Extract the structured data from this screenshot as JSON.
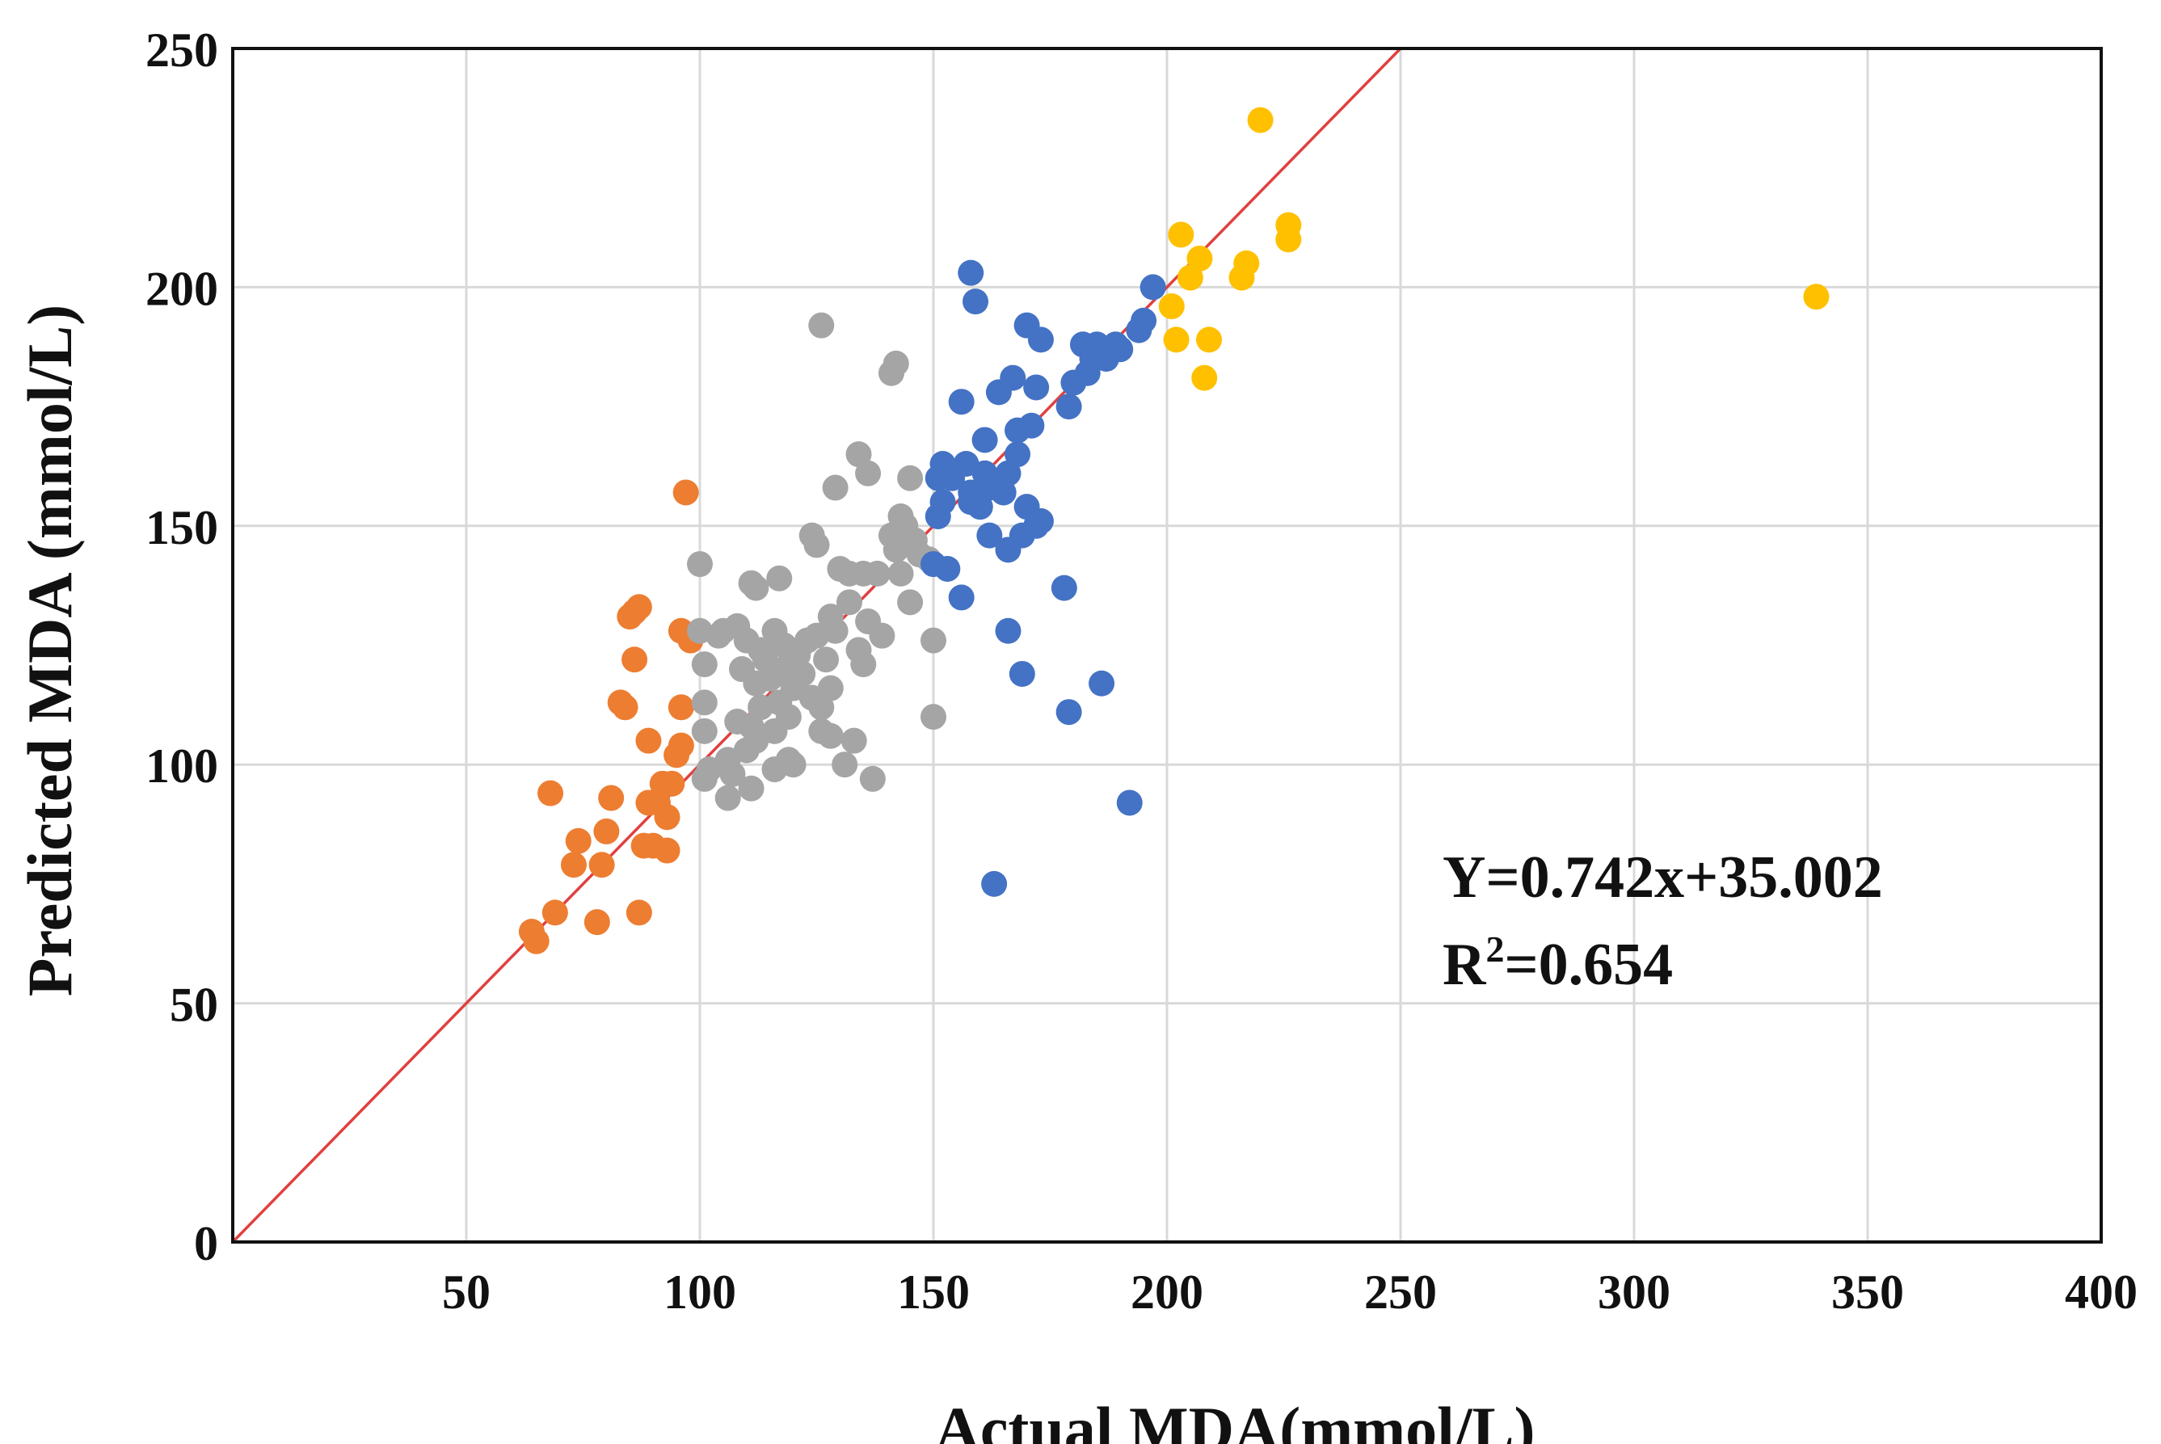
{
  "chart_data": {
    "type": "scatter",
    "title": "",
    "xlabel": "Actual MDA(mmol/L)",
    "ylabel": "Predicted MDA (mmol/L)",
    "xlim": [
      0,
      400
    ],
    "ylim": [
      0,
      250
    ],
    "xticks": [
      50,
      100,
      150,
      200,
      250,
      300,
      350,
      400
    ],
    "yticks": [
      0,
      50,
      100,
      150,
      200,
      250
    ],
    "grid": true,
    "legend": "none",
    "annotation": {
      "equation": "Y=0.742x+35.002",
      "r2_prefix": "R",
      "r2_sup": "2",
      "r2_value": "=0.654"
    },
    "reference_line": {
      "name": "y=x",
      "color": "#E0403F",
      "from": [
        0,
        0
      ],
      "to": [
        250,
        250
      ]
    },
    "series": [
      {
        "name": "orange",
        "color": "#ED7D31",
        "points": [
          [
            64,
            65
          ],
          [
            65,
            63
          ],
          [
            68,
            94
          ],
          [
            69,
            69
          ],
          [
            73,
            79
          ],
          [
            74,
            84
          ],
          [
            78,
            67
          ],
          [
            79,
            79
          ],
          [
            80,
            86
          ],
          [
            81,
            93
          ],
          [
            83,
            113
          ],
          [
            84,
            112
          ],
          [
            85,
            131
          ],
          [
            86,
            122
          ],
          [
            86,
            132
          ],
          [
            87,
            133
          ],
          [
            87,
            69
          ],
          [
            88,
            83
          ],
          [
            89,
            92
          ],
          [
            89,
            105
          ],
          [
            90,
            83
          ],
          [
            91,
            92
          ],
          [
            92,
            96
          ],
          [
            93,
            89
          ],
          [
            93,
            82
          ],
          [
            94,
            96
          ],
          [
            95,
            102
          ],
          [
            96,
            104
          ],
          [
            96,
            112
          ],
          [
            96,
            128
          ],
          [
            97,
            157
          ],
          [
            98,
            126
          ]
        ]
      },
      {
        "name": "gray",
        "color": "#A5A5A5",
        "points": [
          [
            100,
            142
          ],
          [
            100,
            128
          ],
          [
            101,
            121
          ],
          [
            101,
            113
          ],
          [
            101,
            107
          ],
          [
            101,
            97
          ],
          [
            102,
            99
          ],
          [
            104,
            127
          ],
          [
            105,
            128
          ],
          [
            106,
            101
          ],
          [
            106,
            93
          ],
          [
            107,
            98
          ],
          [
            108,
            129
          ],
          [
            108,
            109
          ],
          [
            109,
            120
          ],
          [
            110,
            126
          ],
          [
            110,
            103
          ],
          [
            111,
            138
          ],
          [
            111,
            108
          ],
          [
            111,
            95
          ],
          [
            112,
            137
          ],
          [
            112,
            117
          ],
          [
            112,
            105
          ],
          [
            113,
            124
          ],
          [
            113,
            112
          ],
          [
            114,
            122
          ],
          [
            115,
            118
          ],
          [
            116,
            128
          ],
          [
            116,
            107
          ],
          [
            116,
            99
          ],
          [
            117,
            139
          ],
          [
            117,
            113
          ],
          [
            118,
            125
          ],
          [
            118,
            120
          ],
          [
            119,
            110
          ],
          [
            119,
            101
          ],
          [
            120,
            116
          ],
          [
            120,
            100
          ],
          [
            121,
            123
          ],
          [
            122,
            119
          ],
          [
            123,
            126
          ],
          [
            124,
            148
          ],
          [
            124,
            114
          ],
          [
            125,
            146
          ],
          [
            125,
            127
          ],
          [
            126,
            192
          ],
          [
            126,
            112
          ],
          [
            126,
            107
          ],
          [
            127,
            122
          ],
          [
            128,
            131
          ],
          [
            128,
            116
          ],
          [
            128,
            106
          ],
          [
            129,
            158
          ],
          [
            129,
            128
          ],
          [
            130,
            141
          ],
          [
            131,
            100
          ],
          [
            132,
            140
          ],
          [
            132,
            134
          ],
          [
            133,
            105
          ],
          [
            134,
            165
          ],
          [
            134,
            124
          ],
          [
            135,
            140
          ],
          [
            135,
            121
          ],
          [
            136,
            161
          ],
          [
            136,
            130
          ],
          [
            137,
            97
          ],
          [
            138,
            140
          ],
          [
            139,
            127
          ],
          [
            141,
            182
          ],
          [
            141,
            148
          ],
          [
            142,
            184
          ],
          [
            142,
            145
          ],
          [
            143,
            152
          ],
          [
            143,
            140
          ],
          [
            144,
            150
          ],
          [
            145,
            160
          ],
          [
            145,
            134
          ],
          [
            146,
            147
          ],
          [
            147,
            144
          ],
          [
            149,
            143
          ],
          [
            150,
            126
          ],
          [
            150,
            110
          ]
        ]
      },
      {
        "name": "blue",
        "color": "#4472C4",
        "points": [
          [
            150,
            142
          ],
          [
            151,
            152
          ],
          [
            151,
            160
          ],
          [
            152,
            155
          ],
          [
            152,
            163
          ],
          [
            153,
            141
          ],
          [
            154,
            160
          ],
          [
            156,
            176
          ],
          [
            156,
            135
          ],
          [
            157,
            163
          ],
          [
            158,
            155
          ],
          [
            158,
            157
          ],
          [
            158,
            203
          ],
          [
            159,
            197
          ],
          [
            160,
            154
          ],
          [
            161,
            168
          ],
          [
            161,
            161
          ],
          [
            162,
            158
          ],
          [
            162,
            148
          ],
          [
            163,
            75
          ],
          [
            164,
            178
          ],
          [
            165,
            157
          ],
          [
            166,
            161
          ],
          [
            166,
            145
          ],
          [
            166,
            128
          ],
          [
            167,
            181
          ],
          [
            168,
            170
          ],
          [
            168,
            165
          ],
          [
            169,
            119
          ],
          [
            169,
            148
          ],
          [
            170,
            192
          ],
          [
            170,
            154
          ],
          [
            171,
            171
          ],
          [
            172,
            179
          ],
          [
            172,
            150
          ],
          [
            173,
            189
          ],
          [
            173,
            151
          ],
          [
            178,
            137
          ],
          [
            179,
            111
          ],
          [
            179,
            175
          ],
          [
            180,
            180
          ],
          [
            182,
            188
          ],
          [
            183,
            182
          ],
          [
            184,
            185
          ],
          [
            185,
            188
          ],
          [
            186,
            117
          ],
          [
            187,
            185
          ],
          [
            189,
            188
          ],
          [
            190,
            187
          ],
          [
            192,
            92
          ],
          [
            194,
            191
          ],
          [
            195,
            193
          ],
          [
            197,
            200
          ]
        ]
      },
      {
        "name": "yellow",
        "color": "#FFC000",
        "points": [
          [
            201,
            196
          ],
          [
            202,
            189
          ],
          [
            203,
            211
          ],
          [
            205,
            202
          ],
          [
            207,
            206
          ],
          [
            208,
            181
          ],
          [
            209,
            189
          ],
          [
            216,
            202
          ],
          [
            217,
            205
          ],
          [
            220,
            235
          ],
          [
            226,
            210
          ],
          [
            226,
            213
          ],
          [
            339,
            198
          ]
        ]
      }
    ]
  }
}
